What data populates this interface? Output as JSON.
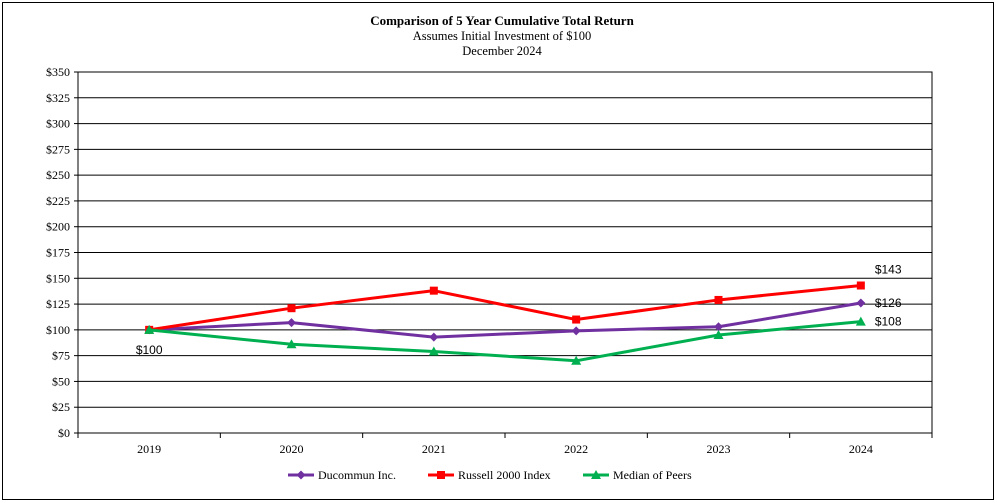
{
  "chart_data": {
    "type": "line",
    "title": "Comparison of 5 Year Cumulative Total Return",
    "subtitle_lines": [
      "Assumes Initial Investment of $100",
      "December 2024"
    ],
    "categories": [
      "2019",
      "2020",
      "2021",
      "2022",
      "2023",
      "2024"
    ],
    "ylim": [
      0,
      350
    ],
    "yticks": [
      0,
      25,
      50,
      75,
      100,
      125,
      150,
      175,
      200,
      225,
      250,
      275,
      300,
      325,
      350
    ],
    "ytick_labels": [
      "$0",
      "$25",
      "$50",
      "$75",
      "$100",
      "$125",
      "$150",
      "$175",
      "$200",
      "$225",
      "$250",
      "$275",
      "$300",
      "$325",
      "$350"
    ],
    "grid": "horizontal",
    "legend_position": "bottom",
    "series": [
      {
        "name": "Ducommun Inc.",
        "color": "#7030a0",
        "marker": "diamond",
        "values": [
          100,
          107,
          93,
          99,
          103,
          126
        ]
      },
      {
        "name": "Russell 2000 Index",
        "color": "#ff0000",
        "marker": "square",
        "values": [
          100,
          121,
          138,
          110,
          129,
          143
        ]
      },
      {
        "name": "Median of Peers",
        "color": "#00b050",
        "marker": "triangle",
        "values": [
          100,
          86,
          79,
          70,
          95,
          108
        ]
      }
    ],
    "annotations": [
      {
        "text": "$100",
        "category": "2019",
        "value": 100
      },
      {
        "text": "$143",
        "category": "2024",
        "value": 143
      },
      {
        "text": "$126",
        "category": "2024",
        "value": 126
      },
      {
        "text": "$108",
        "category": "2024",
        "value": 108
      }
    ]
  }
}
